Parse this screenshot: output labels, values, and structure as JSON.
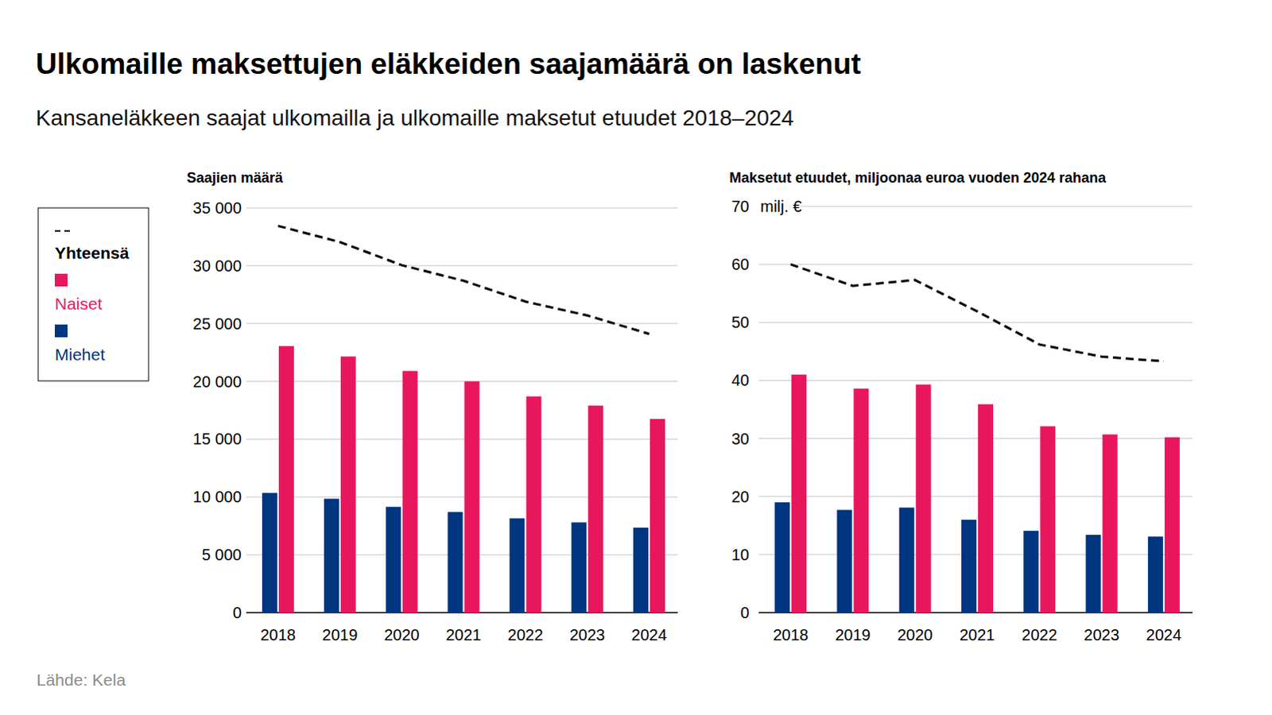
{
  "title": "Ulkomaille maksettujen eläkkeiden saajamäärä on laskenut",
  "subtitle": "Kansaneläkkeen saajat ulkomailla ja ulkomaille maksetut etuudet 2018–2024",
  "source": "Lähde: Kela",
  "chart_data": [
    {
      "type": "bar",
      "title": "Saajien määrä",
      "categories": [
        "2018",
        "2019",
        "2020",
        "2021",
        "2022",
        "2023",
        "2024"
      ],
      "series": [
        {
          "name": "Yhteensä",
          "type": "line",
          "line_style": "dashed",
          "color": "#000000",
          "values": [
            33450,
            32050,
            30050,
            28700,
            26900,
            25700,
            24100
          ]
        },
        {
          "name": "Naiset",
          "type": "bar",
          "color": "#e8175d",
          "values": [
            23050,
            22150,
            20900,
            20000,
            18700,
            17900,
            16750
          ]
        },
        {
          "name": "Miehet",
          "type": "bar",
          "color": "#003580",
          "values": [
            10350,
            9850,
            9150,
            8700,
            8150,
            7800,
            7350
          ]
        }
      ],
      "ylim": [
        0,
        35000
      ],
      "yticks": [
        0,
        {
          "value": 5000,
          "label": "5 000"
        },
        {
          "value": 10000,
          "label": "10 000"
        },
        {
          "value": 15000,
          "label": "15 000"
        },
        {
          "value": 20000,
          "label": "20 000"
        },
        {
          "value": 25000,
          "label": "25 000"
        },
        {
          "value": 30000,
          "label": "30 000"
        },
        {
          "value": 35000,
          "label": "35 000"
        }
      ],
      "grid": true,
      "legend": "left"
    },
    {
      "type": "bar",
      "title": "Maksetut etuudet, miljoonaa euroa vuoden 2024 rahana",
      "y_unit": "milj. €",
      "categories": [
        "2018",
        "2019",
        "2020",
        "2021",
        "2022",
        "2023",
        "2024"
      ],
      "series": [
        {
          "name": "Yhteensä",
          "type": "line",
          "line_style": "dashed",
          "color": "#000000",
          "values": [
            60.0,
            56.3,
            57.3,
            51.9,
            46.2,
            44.1,
            43.3
          ]
        },
        {
          "name": "Naiset",
          "type": "bar",
          "color": "#e8175d",
          "values": [
            41.0,
            38.6,
            39.3,
            35.9,
            32.1,
            30.7,
            30.2
          ]
        },
        {
          "name": "Miehet",
          "type": "bar",
          "color": "#003580",
          "values": [
            19.0,
            17.7,
            18.1,
            16.0,
            14.1,
            13.4,
            13.1
          ]
        }
      ],
      "ylim": [
        0,
        70
      ],
      "yticks": [
        0,
        10,
        20,
        30,
        40,
        50,
        60,
        70
      ],
      "grid": true
    }
  ]
}
